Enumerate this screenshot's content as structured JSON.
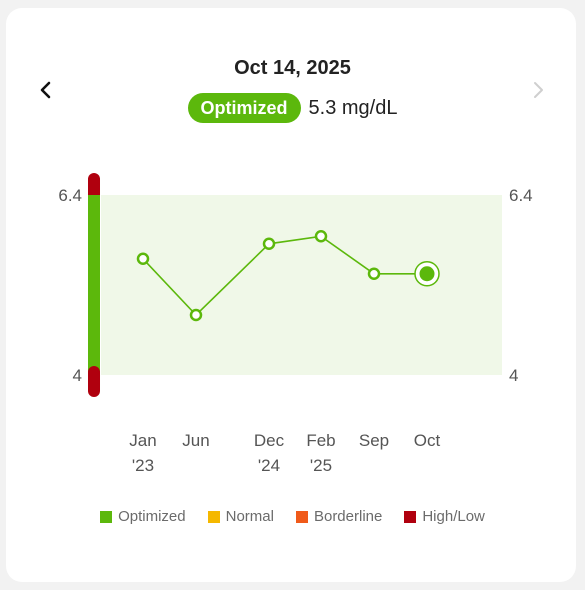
{
  "header": {
    "date": "Oct 14, 2025",
    "status": "Optimized",
    "value": "5.3 mg/dL",
    "prev_icon": "chevron-left-icon",
    "next_icon": "chevron-right-icon"
  },
  "colors": {
    "optimized": "#5cb80c",
    "normal": "#f5b800",
    "borderline": "#f05a1a",
    "high_low": "#b0000e",
    "band": "#f0f8e8"
  },
  "chart_data": {
    "type": "line",
    "ylim": [
      4,
      6.4
    ],
    "y_ticks": [
      "6.4",
      "4"
    ],
    "x": [
      "Jan '23",
      "Jun",
      "Dec '24",
      "Feb '25",
      "Sep",
      "Oct"
    ],
    "x_label_lines": [
      [
        "Jan",
        "'23"
      ],
      [
        "Jun"
      ],
      [
        "Dec",
        "'24"
      ],
      [
        "Feb",
        "'25"
      ],
      [
        "Sep"
      ],
      [
        "Oct"
      ]
    ],
    "series": [
      {
        "values": [
          5.55,
          4.8,
          5.75,
          5.85,
          5.35,
          5.35
        ]
      }
    ],
    "optimized_range": [
      4,
      6.4
    ],
    "legend": [
      "Optimized",
      "Normal",
      "Borderline",
      "High/Low"
    ],
    "legend_position": "bottom",
    "grid": false
  }
}
